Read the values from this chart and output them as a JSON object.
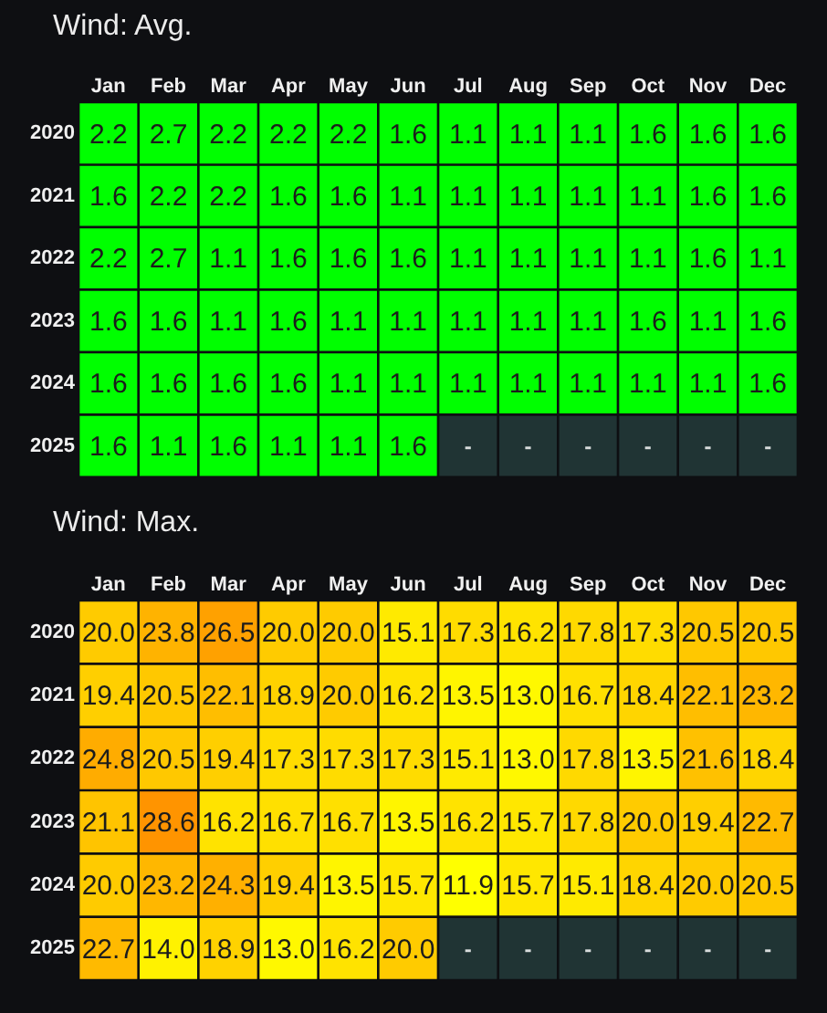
{
  "chart_data": [
    {
      "type": "heatmap",
      "title": "Wind: Avg.",
      "categories": [
        "Jan",
        "Feb",
        "Mar",
        "Apr",
        "May",
        "Jun",
        "Jul",
        "Aug",
        "Sep",
        "Oct",
        "Nov",
        "Dec"
      ],
      "y_categories": [
        "2020",
        "2021",
        "2022",
        "2023",
        "2024",
        "2025"
      ],
      "cells": [
        [
          2.2,
          2.7,
          2.2,
          2.2,
          2.2,
          1.6,
          1.1,
          1.1,
          1.1,
          1.6,
          1.6,
          1.6
        ],
        [
          1.6,
          2.2,
          2.2,
          1.6,
          1.6,
          1.1,
          1.1,
          1.1,
          1.1,
          1.1,
          1.6,
          1.6
        ],
        [
          2.2,
          2.7,
          1.1,
          1.6,
          1.6,
          1.6,
          1.1,
          1.1,
          1.1,
          1.1,
          1.6,
          1.1
        ],
        [
          1.6,
          1.6,
          1.1,
          1.6,
          1.1,
          1.1,
          1.1,
          1.1,
          1.1,
          1.6,
          1.1,
          1.6
        ],
        [
          1.6,
          1.6,
          1.6,
          1.6,
          1.1,
          1.1,
          1.1,
          1.1,
          1.1,
          1.1,
          1.1,
          1.6
        ],
        [
          1.6,
          1.1,
          1.6,
          1.1,
          1.1,
          1.6,
          null,
          null,
          null,
          null,
          null,
          null
        ]
      ],
      "cell_labels": [
        [
          "2.2",
          "2.7",
          "2.2",
          "2.2",
          "2.2",
          "1.6",
          "1.1",
          "1.1",
          "1.1",
          "1.6",
          "1.6",
          "1.6"
        ],
        [
          "1.6",
          "2.2",
          "2.2",
          "1.6",
          "1.6",
          "1.1",
          "1.1",
          "1.1",
          "1.1",
          "1.1",
          "1.6",
          "1.6"
        ],
        [
          "2.2",
          "2.7",
          "1.1",
          "1.6",
          "1.6",
          "1.6",
          "1.1",
          "1.1",
          "1.1",
          "1.1",
          "1.6",
          "1.1"
        ],
        [
          "1.6",
          "1.6",
          "1.1",
          "1.6",
          "1.1",
          "1.1",
          "1.1",
          "1.1",
          "1.1",
          "1.6",
          "1.1",
          "1.6"
        ],
        [
          "1.6",
          "1.6",
          "1.6",
          "1.6",
          "1.1",
          "1.1",
          "1.1",
          "1.1",
          "1.1",
          "1.1",
          "1.1",
          "1.6"
        ],
        [
          "1.6",
          "1.1",
          "1.6",
          "1.1",
          "1.1",
          "1.6",
          "-",
          "-",
          "-",
          "-",
          "-",
          "-"
        ]
      ],
      "color": "#00ff00"
    },
    {
      "type": "heatmap",
      "title": "Wind: Max.",
      "categories": [
        "Jan",
        "Feb",
        "Mar",
        "Apr",
        "May",
        "Jun",
        "Jul",
        "Aug",
        "Sep",
        "Oct",
        "Nov",
        "Dec"
      ],
      "y_categories": [
        "2020",
        "2021",
        "2022",
        "2023",
        "2024",
        "2025"
      ],
      "cells": [
        [
          20.0,
          23.8,
          26.5,
          20.0,
          20.0,
          15.1,
          17.3,
          16.2,
          17.8,
          17.3,
          20.5,
          20.5
        ],
        [
          19.4,
          20.5,
          22.1,
          18.9,
          20.0,
          16.2,
          13.5,
          13.0,
          16.7,
          18.4,
          22.1,
          23.2
        ],
        [
          24.8,
          20.5,
          19.4,
          17.3,
          17.3,
          17.3,
          15.1,
          13.0,
          17.8,
          13.5,
          21.6,
          18.4
        ],
        [
          21.1,
          28.6,
          16.2,
          16.7,
          16.7,
          13.5,
          16.2,
          15.7,
          17.8,
          20.0,
          19.4,
          22.7
        ],
        [
          20.0,
          23.2,
          24.3,
          19.4,
          13.5,
          15.7,
          11.9,
          15.7,
          15.1,
          18.4,
          20.0,
          20.5
        ],
        [
          22.7,
          14.0,
          18.9,
          13.0,
          16.2,
          20.0,
          null,
          null,
          null,
          null,
          null,
          null
        ]
      ],
      "cell_labels": [
        [
          "20.0",
          "23.8",
          "26.5",
          "20.0",
          "20.0",
          "15.1",
          "17.3",
          "16.2",
          "17.8",
          "17.3",
          "20.5",
          "20.5"
        ],
        [
          "19.4",
          "20.5",
          "22.1",
          "18.9",
          "20.0",
          "16.2",
          "13.5",
          "13.0",
          "16.7",
          "18.4",
          "22.1",
          "23.2"
        ],
        [
          "24.8",
          "20.5",
          "19.4",
          "17.3",
          "17.3",
          "17.3",
          "15.1",
          "13.0",
          "17.8",
          "13.5",
          "21.6",
          "18.4"
        ],
        [
          "21.1",
          "28.6",
          "16.2",
          "16.7",
          "16.7",
          "13.5",
          "16.2",
          "15.7",
          "17.8",
          "20.0",
          "19.4",
          "22.7"
        ],
        [
          "20.0",
          "23.2",
          "24.3",
          "19.4",
          "13.5",
          "15.7",
          "11.9",
          "15.7",
          "15.1",
          "18.4",
          "20.0",
          "20.5"
        ],
        [
          "22.7",
          "14.0",
          "18.9",
          "13.0",
          "16.2",
          "20.0",
          "-",
          "-",
          "-",
          "-",
          "-",
          "-"
        ]
      ],
      "colors": [
        "#ffff00",
        "#ff9400"
      ]
    }
  ]
}
